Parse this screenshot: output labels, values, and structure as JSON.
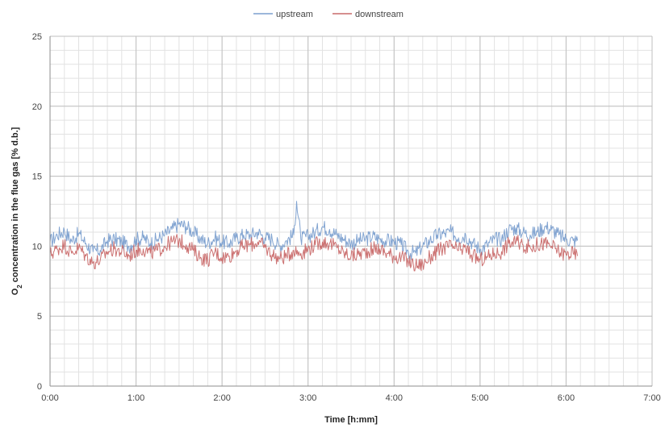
{
  "chart_data": {
    "type": "line",
    "title": "",
    "xlabel": "Time [h:mm]",
    "ylabel_parts": {
      "prefix": "O",
      "sub": "2",
      "rest": " concentration in the flue gas [% d.b.]"
    },
    "ylim": [
      0,
      25
    ],
    "xlim_minutes": [
      0,
      420
    ],
    "y_ticks": [
      "0",
      "5",
      "10",
      "15",
      "20",
      "25"
    ],
    "x_ticks": [
      "0:00",
      "1:00",
      "2:00",
      "3:00",
      "4:00",
      "5:00",
      "6:00",
      "7:00"
    ],
    "grid": true,
    "legend_position": "top-center",
    "series": [
      {
        "name": "upstream",
        "color": "#7b9fcf",
        "x_minutes": [
          0,
          5,
          10,
          15,
          20,
          25,
          30,
          35,
          40,
          45,
          50,
          55,
          60,
          65,
          70,
          75,
          80,
          85,
          90,
          95,
          100,
          105,
          110,
          115,
          120,
          125,
          130,
          135,
          140,
          145,
          150,
          155,
          160,
          165,
          170,
          172,
          175,
          180,
          185,
          190,
          195,
          200,
          205,
          210,
          215,
          220,
          225,
          230,
          235,
          240,
          245,
          250,
          255,
          260,
          265,
          270,
          275,
          280,
          285,
          290,
          295,
          300,
          305,
          310,
          315,
          320,
          325,
          330,
          335,
          340,
          345,
          350,
          355,
          360,
          365,
          368
        ],
        "values": [
          10.3,
          10.8,
          11.1,
          10.4,
          10.9,
          10.2,
          9.6,
          9.7,
          10.4,
          10.5,
          10.3,
          10.0,
          10.5,
          10.6,
          10.2,
          10.5,
          10.8,
          11.2,
          11.6,
          11.4,
          11.0,
          10.5,
          10.2,
          10.6,
          10.3,
          10.2,
          10.6,
          10.8,
          10.8,
          11.0,
          10.6,
          10.5,
          10.0,
          10.4,
          10.8,
          13.2,
          10.5,
          10.7,
          11.0,
          11.4,
          11.2,
          10.8,
          10.5,
          10.2,
          10.4,
          10.5,
          10.7,
          10.5,
          10.4,
          10.3,
          10.1,
          9.6,
          9.5,
          10.0,
          10.4,
          10.8,
          10.9,
          11.0,
          10.6,
          10.8,
          10.2,
          9.8,
          10.1,
          10.5,
          10.5,
          11.2,
          11.3,
          11.0,
          10.8,
          11.0,
          11.4,
          11.2,
          10.8,
          10.5,
          10.4,
          10.4
        ]
      },
      {
        "name": "downstream",
        "color": "#c96a6a",
        "x_minutes": [
          0,
          5,
          10,
          15,
          20,
          25,
          30,
          35,
          40,
          45,
          50,
          55,
          60,
          65,
          70,
          75,
          80,
          85,
          90,
          95,
          100,
          105,
          110,
          115,
          120,
          125,
          130,
          135,
          140,
          145,
          150,
          155,
          160,
          165,
          170,
          175,
          180,
          185,
          190,
          195,
          200,
          205,
          210,
          215,
          220,
          225,
          230,
          235,
          240,
          245,
          250,
          255,
          260,
          265,
          270,
          275,
          280,
          285,
          290,
          295,
          300,
          305,
          310,
          315,
          320,
          325,
          330,
          335,
          340,
          345,
          350,
          355,
          360,
          365,
          368
        ],
        "values": [
          9.4,
          9.8,
          10.1,
          9.5,
          9.9,
          9.3,
          8.8,
          9.0,
          9.6,
          9.8,
          9.6,
          9.3,
          9.7,
          9.8,
          9.5,
          9.7,
          10.0,
          10.3,
          10.4,
          10.1,
          9.7,
          9.2,
          9.0,
          9.6,
          9.2,
          9.3,
          9.7,
          10.0,
          10.1,
          10.3,
          9.9,
          9.4,
          9.1,
          9.3,
          9.7,
          9.5,
          9.8,
          10.1,
          10.3,
          10.2,
          9.9,
          9.5,
          9.3,
          9.4,
          9.6,
          9.8,
          9.8,
          9.5,
          9.3,
          9.2,
          8.9,
          8.6,
          8.7,
          9.2,
          9.6,
          9.9,
          10.0,
          9.7,
          9.8,
          9.3,
          9.0,
          9.2,
          9.5,
          9.6,
          10.2,
          10.3,
          10.1,
          9.9,
          10.1,
          10.2,
          10.0,
          9.6,
          9.4,
          9.5,
          9.3
        ]
      }
    ]
  }
}
